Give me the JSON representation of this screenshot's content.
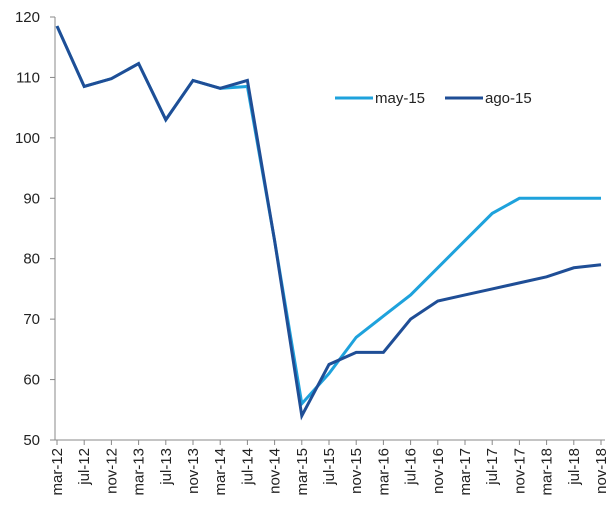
{
  "chart_data": {
    "type": "line",
    "categories": [
      "mar-12",
      "jul-12",
      "nov-12",
      "mar-13",
      "jul-13",
      "nov-13",
      "mar-14",
      "jul-14",
      "nov-14",
      "mar-15",
      "jul-15",
      "nov-15",
      "mar-16",
      "jul-16",
      "nov-16",
      "mar-17",
      "jul-17",
      "nov-17",
      "mar-18",
      "jul-18",
      "nov-18"
    ],
    "series": [
      {
        "name": "may-15",
        "color": "#1ea2dc",
        "values": [
          118.5,
          108.5,
          109.8,
          112.3,
          103,
          109.5,
          108.2,
          108.5,
          83,
          56,
          61,
          67,
          70.5,
          74,
          78.5,
          83,
          87.5,
          90,
          90,
          90,
          90
        ]
      },
      {
        "name": "ago-15",
        "color": "#1f4e96",
        "values": [
          118.5,
          108.5,
          109.8,
          112.3,
          103,
          109.5,
          108.2,
          109.5,
          83,
          54,
          62.5,
          64.5,
          64.5,
          70,
          73,
          74,
          75,
          76,
          77,
          78.5,
          79
        ]
      }
    ],
    "ylim": [
      50,
      120
    ],
    "yticks": [
      50,
      60,
      70,
      80,
      90,
      100,
      110,
      120
    ],
    "legend": "top-right"
  }
}
